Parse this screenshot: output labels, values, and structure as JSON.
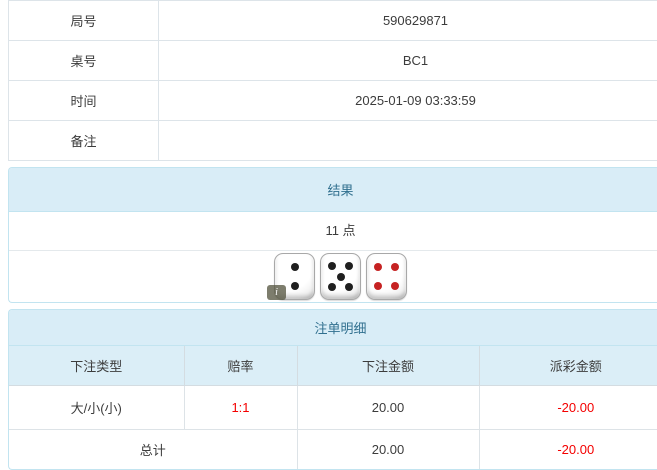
{
  "info_table": {
    "rows": [
      {
        "label": "局号",
        "value": "590629871"
      },
      {
        "label": "桌号",
        "value": "BC1"
      },
      {
        "label": "时间",
        "value": "2025-01-09 03:33:59"
      },
      {
        "label": "备注",
        "value": ""
      }
    ]
  },
  "result_panel": {
    "title": "结果",
    "points_text": "11 点",
    "info_icon_glyph": "i",
    "dice": [
      {
        "value": 2,
        "color": "black"
      },
      {
        "value": 5,
        "color": "black"
      },
      {
        "value": 4,
        "color": "red"
      }
    ]
  },
  "bets_panel": {
    "title": "注单明细",
    "columns": [
      "下注类型",
      "赔率",
      "下注金额",
      "派彩金额"
    ],
    "rows": [
      {
        "bet_type": "大/小(小)",
        "odds": "1:1",
        "bet_amount": "20.00",
        "payout": "-20.00"
      }
    ],
    "total": {
      "label": "总计",
      "bet_amount": "20.00",
      "payout": "-20.00"
    }
  },
  "colors": {
    "section_header_bg": "#d9edf7",
    "section_header_text": "#31708f",
    "panel_border": "#c2e4f0",
    "table_header_bg": "#dbeef7",
    "info_border": "#dde4e9",
    "negative_text": "#f40000",
    "dice_pip_black": "#1f1f1f",
    "dice_pip_red": "#c62222"
  }
}
